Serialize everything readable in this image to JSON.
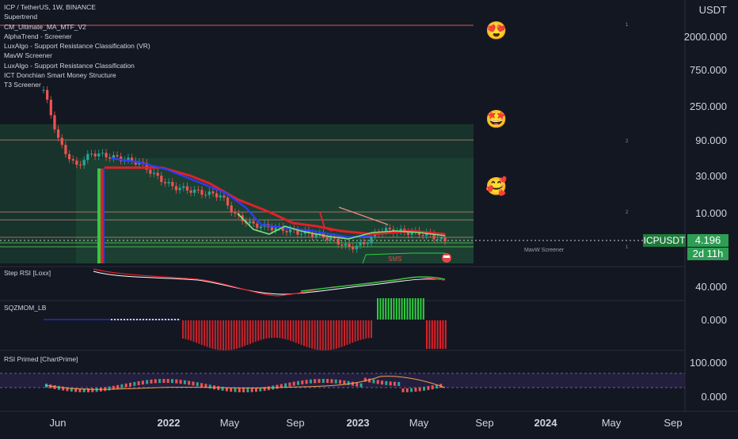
{
  "header": {
    "symbol_line": "ICP / TetherUS, 1W, BINANCE",
    "indicators": [
      "Supertrend",
      "CM_Ultimate_MA_MTF_V2",
      "AlphaTrend - Screener",
      "LuxAlgo - Support Resistance Classification (VR)",
      "MavW Screener",
      "LuxAlgo - Support Resistance Classification",
      "ICT Donchian Smart Money Structure",
      "T3 Screener"
    ]
  },
  "price_axis": {
    "currency": "USDT",
    "ticks": [
      "2000.000",
      "750.000",
      "250.000",
      "90.000",
      "30.000",
      "10.000"
    ]
  },
  "price_badge": {
    "symbol": "ICPUSDT",
    "price": "4.196",
    "countdown": "2d 11h"
  },
  "panes": {
    "step_rsi": {
      "title": "Step RSI [Loxx]",
      "tick": "40.000"
    },
    "sqzmom": {
      "title": "SQZMOM_LB",
      "tick": "0.000"
    },
    "rsi_primed": {
      "title": "RSI Primed [ChartPrime]",
      "ticks": [
        "100.000",
        "0.000"
      ]
    }
  },
  "annotations": {
    "sms_label": "SMS",
    "small_label": "MavW Screener"
  },
  "emojis": [
    "😍",
    "🤩",
    "🥰"
  ],
  "time_axis": [
    "Jun",
    "2022",
    "May",
    "Sep",
    "2023",
    "May",
    "Sep",
    "2024",
    "May",
    "Sep"
  ],
  "colors": {
    "background": "#131722",
    "up": "#26a69a",
    "down": "#ef5350",
    "accent_green": "#2e9e55",
    "supertrend_red": "#e0202a",
    "ma_blue": "#2f3cff"
  },
  "chart_data": {
    "type": "candlestick",
    "title": "ICP / TetherUS, 1W, BINANCE",
    "y_scale": "log",
    "y_ticks": [
      2000,
      750,
      250,
      90,
      30,
      10
    ],
    "last_price": 4.196,
    "x": [
      "2021-05",
      "2021-06",
      "2021-07",
      "2021-08",
      "2021-09",
      "2021-10",
      "2021-11",
      "2021-12",
      "2022-01",
      "2022-02",
      "2022-03",
      "2022-04",
      "2022-05",
      "2022-06",
      "2022-07",
      "2022-08",
      "2022-09",
      "2022-10",
      "2022-11",
      "2022-12",
      "2023-01",
      "2023-02",
      "2023-03",
      "2023-04",
      "2023-05",
      "2023-06"
    ],
    "close": [
      400,
      80,
      40,
      60,
      55,
      50,
      45,
      30,
      22,
      20,
      18,
      17,
      9,
      7,
      6.5,
      6,
      5.5,
      5.2,
      4.5,
      3.5,
      4.0,
      6.0,
      5.8,
      5.5,
      5.2,
      4.2
    ]
  }
}
